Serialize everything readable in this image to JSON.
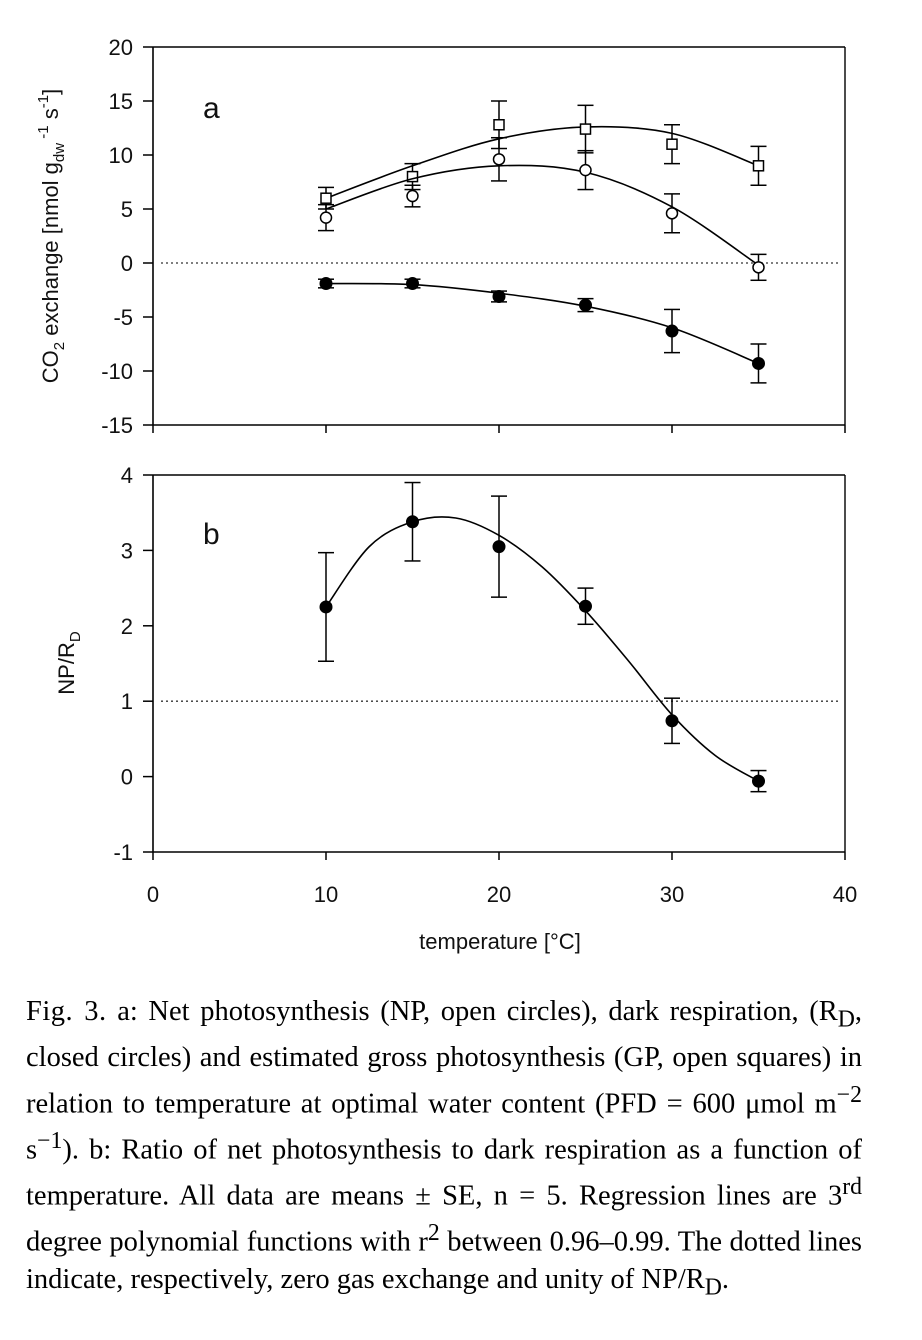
{
  "figure": {
    "panel_a_label": "a",
    "panel_b_label": "b",
    "ylabel_a": "CO2 exchange [nmol gdw-1 s-1]",
    "ylabel_b": "NP/RD",
    "xlabel": "temperature [°C]"
  },
  "chart_data": [
    {
      "type": "scatter",
      "panel": "a",
      "xlabel": "temperature [°C]",
      "ylabel": "CO2 exchange [nmol gdw-1 s-1]",
      "xlim": [
        0,
        40
      ],
      "ylim": [
        -15,
        20
      ],
      "xticks": [
        0,
        10,
        20,
        30,
        40
      ],
      "yticks": [
        20,
        15,
        10,
        5,
        0,
        -5,
        -10,
        -15
      ],
      "reference_line": 0,
      "series": [
        {
          "marker": "open-square",
          "x": [
            10,
            15,
            20,
            25,
            30,
            35
          ],
          "y": [
            6,
            8,
            12.8,
            12.4,
            11,
            9
          ],
          "err": [
            1,
            1.2,
            2.2,
            2.2,
            1.8,
            1.8
          ],
          "fit": [
            [
              10,
              6
            ],
            [
              15,
              9
            ],
            [
              20,
              11.5
            ],
            [
              25,
              12.6
            ],
            [
              30,
              12
            ],
            [
              35,
              9
            ]
          ]
        },
        {
          "marker": "open-circle",
          "x": [
            10,
            15,
            20,
            25,
            30,
            35
          ],
          "y": [
            4.2,
            6.2,
            9.6,
            8.6,
            4.6,
            -0.4
          ],
          "err": [
            1.2,
            1,
            2,
            1.8,
            1.8,
            1.2
          ],
          "fit": [
            [
              10,
              5
            ],
            [
              15,
              7.8
            ],
            [
              20,
              9
            ],
            [
              25,
              8.4
            ],
            [
              30,
              5.2
            ],
            [
              35,
              -0.2
            ]
          ]
        },
        {
          "marker": "filled-circle",
          "x": [
            10,
            15,
            20,
            25,
            30,
            35
          ],
          "y": [
            -1.9,
            -1.9,
            -3.1,
            -3.9,
            -6.3,
            -9.3
          ],
          "err": [
            0.4,
            0.4,
            0.5,
            0.6,
            2,
            1.8
          ],
          "fit": [
            [
              10,
              -1.9
            ],
            [
              15,
              -2
            ],
            [
              20,
              -2.8
            ],
            [
              25,
              -4
            ],
            [
              30,
              -6
            ],
            [
              35,
              -9.3
            ]
          ]
        }
      ]
    },
    {
      "type": "scatter",
      "panel": "b",
      "xlabel": "temperature [°C]",
      "ylabel": "NP/RD",
      "xlim": [
        0,
        40
      ],
      "ylim": [
        -1,
        4
      ],
      "xticks": [
        0,
        10,
        20,
        30,
        40
      ],
      "yticks": [
        4,
        3,
        2,
        1,
        0,
        -1
      ],
      "reference_line": 1,
      "series": [
        {
          "marker": "filled-circle",
          "x": [
            10,
            15,
            20,
            25,
            30,
            35
          ],
          "y": [
            2.25,
            3.38,
            3.05,
            2.26,
            0.74,
            -0.06
          ],
          "err": [
            0.72,
            0.52,
            0.67,
            0.24,
            0.3,
            0.14
          ],
          "fit": [
            [
              10,
              2.25
            ],
            [
              12.5,
              3.05
            ],
            [
              15,
              3.38
            ],
            [
              17.5,
              3.43
            ],
            [
              20,
              3.2
            ],
            [
              22.5,
              2.78
            ],
            [
              25,
              2.2
            ],
            [
              27.5,
              1.53
            ],
            [
              30,
              0.82
            ],
            [
              32.5,
              0.28
            ],
            [
              35,
              -0.06
            ]
          ]
        }
      ]
    }
  ],
  "caption": {
    "fig_label": "Fig. 3.",
    "body_1": " a: Net photosynthesis (NP, open circles), dark respiration, (R",
    "sub_d1": "D",
    "body_2": ", closed circles) and estimated gross photosynthesis (GP, open squares) in relation to temperature at optimal water content (PFD = 600 μmol m",
    "sup_m2": "−2",
    "body_3": " s",
    "sup_m1": "−1",
    "body_4": "). b: Ratio of net photosynthesis to dark respiration as a function of temperature. All data are means ± SE, n = 5. Regression lines are 3",
    "sup_rd": "rd",
    "body_5": " degree polynomial functions with r",
    "sup_2": "2",
    "body_6": " between 0.96–0.99. The dotted lines indicate, respectively, zero gas exchange and unity of NP/R",
    "sub_d2": "D",
    "body_7": "."
  }
}
